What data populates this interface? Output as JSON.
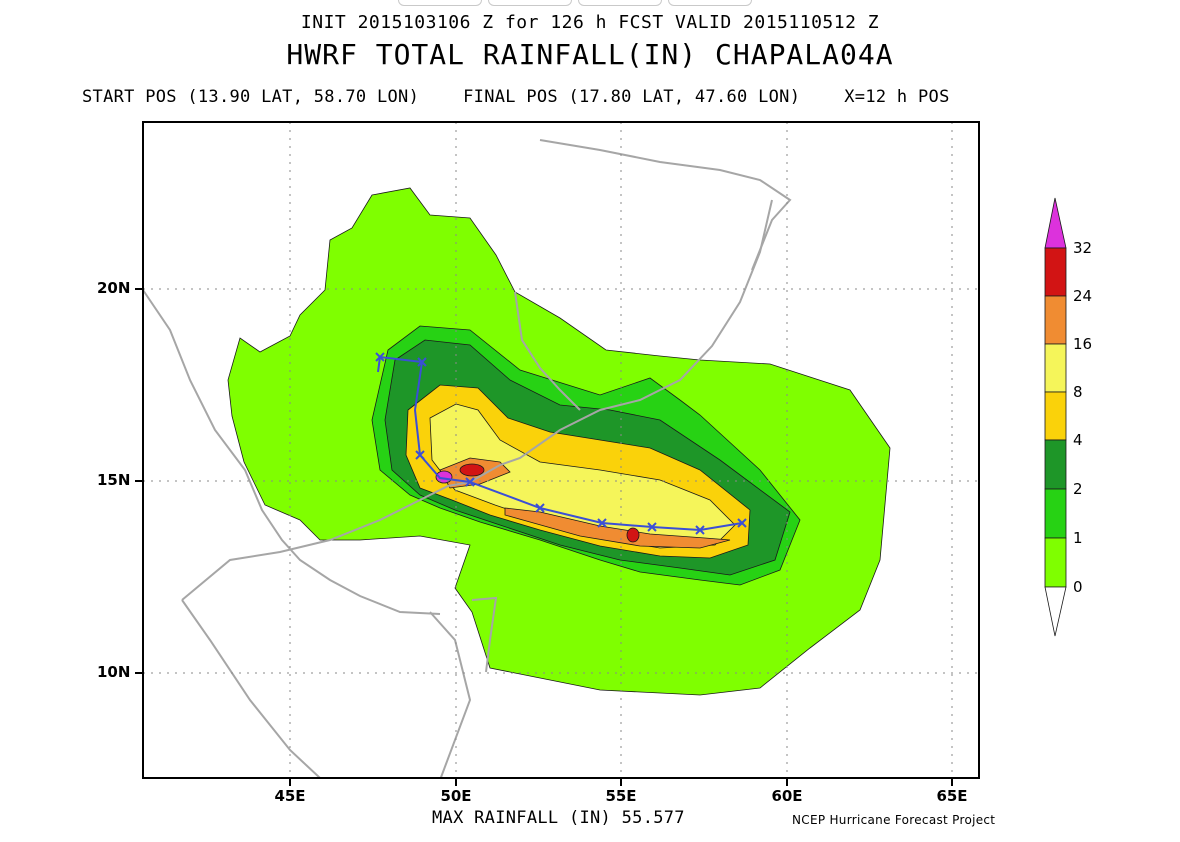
{
  "header": {
    "init_line": "INIT 2015103106 Z for 126 h FCST VALID 2015110512 Z",
    "title": "HWRF TOTAL RAINFALL(IN) CHAPALA04A",
    "start_pos": "START POS (13.90 LAT, 58.70 LON)",
    "final_pos": "FINAL POS (17.80 LAT, 47.60 LON)",
    "interval": "X=12 h POS"
  },
  "map": {
    "lat_labels": [
      "20N",
      "15N",
      "10N"
    ],
    "lon_labels": [
      "45E",
      "50E",
      "55E",
      "60E",
      "65E"
    ],
    "track_note": "storm track marked every 12 h"
  },
  "colorbar": {
    "levels": [
      "0",
      "1",
      "2",
      "4",
      "8",
      "16",
      "24",
      "32"
    ],
    "colors": {
      "lvl0": "#7fff00",
      "lvl1": "#27d214",
      "lvl2": "#1e9628",
      "lvl4": "#fad20a",
      "lvl8": "#f5f55a",
      "lvl16": "#f08c32",
      "lvl24": "#d21414",
      "lvl32": "#dc32dc"
    }
  },
  "footer": {
    "max_rainfall": "MAX RAINFALL (IN) 55.577",
    "credit": "NCEP Hurricane Forecast Project"
  }
}
